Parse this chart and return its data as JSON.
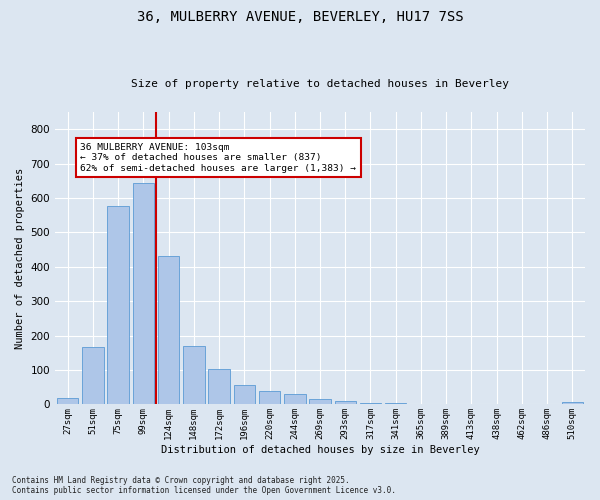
{
  "title": "36, MULBERRY AVENUE, BEVERLEY, HU17 7SS",
  "subtitle": "Size of property relative to detached houses in Beverley",
  "xlabel": "Distribution of detached houses by size in Beverley",
  "ylabel": "Number of detached properties",
  "categories": [
    "27sqm",
    "51sqm",
    "75sqm",
    "99sqm",
    "124sqm",
    "148sqm",
    "172sqm",
    "196sqm",
    "220sqm",
    "244sqm",
    "269sqm",
    "293sqm",
    "317sqm",
    "341sqm",
    "365sqm",
    "389sqm",
    "413sqm",
    "438sqm",
    "462sqm",
    "486sqm",
    "510sqm"
  ],
  "values": [
    20,
    168,
    578,
    643,
    430,
    170,
    103,
    55,
    40,
    31,
    15,
    9,
    3,
    3,
    0,
    0,
    0,
    0,
    0,
    0,
    7
  ],
  "bar_color": "#aec6e8",
  "bar_edge_color": "#5b9bd5",
  "vline_x_index": 3,
  "vline_color": "#cc0000",
  "annotation_text": "36 MULBERRY AVENUE: 103sqm\n← 37% of detached houses are smaller (837)\n62% of semi-detached houses are larger (1,383) →",
  "annotation_box_color": "#ffffff",
  "annotation_box_edge_color": "#cc0000",
  "ylim": [
    0,
    850
  ],
  "yticks": [
    0,
    100,
    200,
    300,
    400,
    500,
    600,
    700,
    800
  ],
  "background_color": "#dce6f1",
  "grid_color": "#ffffff",
  "footer": "Contains HM Land Registry data © Crown copyright and database right 2025.\nContains public sector information licensed under the Open Government Licence v3.0."
}
